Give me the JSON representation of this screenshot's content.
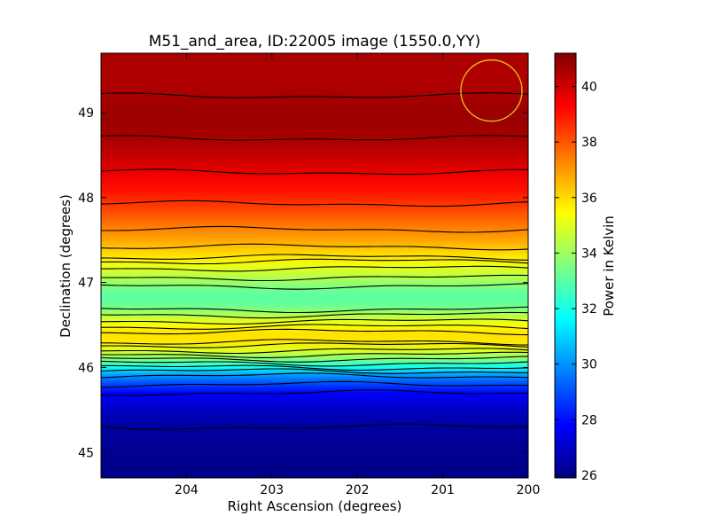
{
  "chart_data": {
    "type": "heatmap",
    "title": "M51_and_area, ID:22005 image (1550.0,YY)",
    "xlabel": "Right Ascension (degrees)",
    "ylabel": "Declination (degrees)",
    "colorbar_label": "Power in Kelvin",
    "xlim": [
      205.0,
      200.0
    ],
    "ylim": [
      44.7,
      49.7
    ],
    "x_ticks": [
      204,
      203,
      202,
      201,
      200
    ],
    "y_ticks": [
      45,
      46,
      47,
      48,
      49
    ],
    "colorbar_range": [
      25.9,
      41.2
    ],
    "colorbar_ticks": [
      26,
      28,
      30,
      32,
      34,
      36,
      38,
      40
    ],
    "colormap": "jet",
    "grid": false,
    "beam_circle": {
      "ra": 200.43,
      "dec": 49.26,
      "radius_deg": 0.36,
      "color": "#e8c811"
    },
    "dec_profile": {
      "dec": [
        44.7,
        44.9,
        45.1,
        45.3,
        45.5,
        45.7,
        45.8,
        45.9,
        46.0,
        46.1,
        46.2,
        46.3,
        46.4,
        46.5,
        46.6,
        46.7,
        46.8,
        46.9,
        47.0,
        47.1,
        47.2,
        47.3,
        47.5,
        47.7,
        47.9,
        48.1,
        48.3,
        48.5,
        48.7,
        48.9,
        49.1,
        49.3,
        49.5,
        49.7
      ],
      "power": [
        26.0,
        26.1,
        26.2,
        26.4,
        26.9,
        27.8,
        28.8,
        30.0,
        31.8,
        33.6,
        35.0,
        35.8,
        35.9,
        35.4,
        34.5,
        33.4,
        33.0,
        33.2,
        33.9,
        34.6,
        35.2,
        35.8,
        36.8,
        37.6,
        38.4,
        39.1,
        39.6,
        40.2,
        40.6,
        40.8,
        40.7,
        40.5,
        40.5,
        40.6
      ]
    },
    "contour_levels": [
      26.4,
      27.8,
      28.8,
      30.0,
      31.0,
      31.8,
      32.7,
      33.6,
      34.3,
      35.0,
      35.5,
      35.8,
      36.4,
      37.3,
      38.5,
      39.6,
      40.6
    ]
  }
}
